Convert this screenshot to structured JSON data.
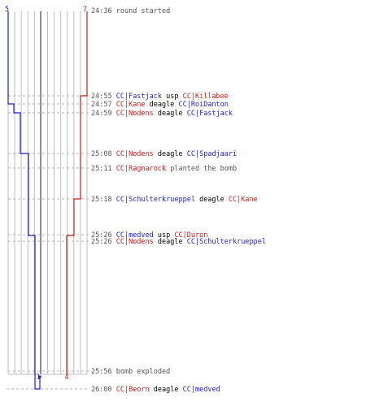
{
  "colors": {
    "team_blue": "#1f1fbf",
    "team_red": "#c81e1e",
    "time": "#555555",
    "grid": "#bdbdbd",
    "dashes": "#b5b5b5",
    "mid": "#777777"
  },
  "start": {
    "blue_count": "5",
    "red_count": "7"
  },
  "end": {
    "blue_count": "1",
    "red_count": "4"
  },
  "events": [
    {
      "time": "24:36",
      "segments": [
        {
          "text": "round started",
          "team": "system"
        }
      ]
    },
    {
      "time": "24:55",
      "segments": [
        {
          "text": "CC|Fastjack",
          "team": "blue"
        },
        {
          "text": " usp ",
          "team": "neutral"
        },
        {
          "text": "CC|Killabee",
          "team": "red"
        }
      ]
    },
    {
      "time": "24:57",
      "segments": [
        {
          "text": "CC|Kane",
          "team": "red"
        },
        {
          "text": " deagle ",
          "team": "neutral"
        },
        {
          "text": "CC|RoiDanton",
          "team": "blue"
        }
      ]
    },
    {
      "time": "24:59",
      "segments": [
        {
          "text": "CC|Nodens",
          "team": "red"
        },
        {
          "text": " deagle ",
          "team": "neutral"
        },
        {
          "text": "CC|Fastjack",
          "team": "blue"
        }
      ]
    },
    {
      "time": "25:08",
      "segments": [
        {
          "text": "CC|Nodens",
          "team": "red"
        },
        {
          "text": " deagle ",
          "team": "neutral"
        },
        {
          "text": "CC|Spadjaari",
          "team": "blue"
        }
      ]
    },
    {
      "time": "25:11",
      "segments": [
        {
          "text": "CC|Ragnarock",
          "team": "red"
        },
        {
          "text": " planted the bomb",
          "team": "system"
        }
      ]
    },
    {
      "time": "25:18",
      "segments": [
        {
          "text": "CC|Schulterkrueppel",
          "team": "blue"
        },
        {
          "text": " deagle ",
          "team": "neutral"
        },
        {
          "text": "CC|Kane",
          "team": "red"
        }
      ]
    },
    {
      "time": "25:26",
      "segments": [
        {
          "text": "CC|medved",
          "team": "blue"
        },
        {
          "text": " usp ",
          "team": "neutral"
        },
        {
          "text": "CC|Duron",
          "team": "red"
        }
      ]
    },
    {
      "time": "25:26",
      "segments": [
        {
          "text": "CC|Nodens",
          "team": "red"
        },
        {
          "text": " deagle ",
          "team": "neutral"
        },
        {
          "text": "CC|Schulterkrueppel",
          "team": "blue"
        }
      ]
    },
    {
      "time": "25:56",
      "segments": [
        {
          "text": "bomb exploded",
          "team": "system"
        }
      ]
    },
    {
      "time": "26:00",
      "segments": [
        {
          "text": "CC|Beorn",
          "team": "red"
        },
        {
          "text": " deagle ",
          "team": "neutral"
        },
        {
          "text": "CC|medved",
          "team": "blue"
        }
      ]
    }
  ]
}
